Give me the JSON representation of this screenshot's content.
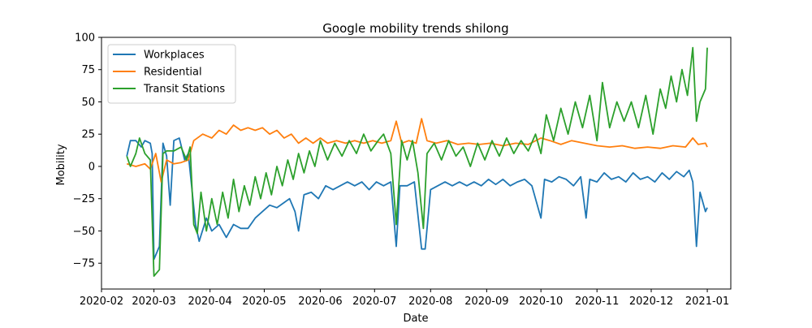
{
  "chart_data": {
    "type": "line",
    "title": "Google mobility trends shilong",
    "xlabel": "Date",
    "ylabel": "Mobility",
    "xlim": [
      "2020-02-01",
      "2021-01-14"
    ],
    "ylim": [
      -95,
      100
    ],
    "x_ticks": [
      "2020-02-01",
      "2020-03-01",
      "2020-04-01",
      "2020-05-01",
      "2020-06-01",
      "2020-07-01",
      "2020-08-01",
      "2020-09-01",
      "2020-10-01",
      "2020-11-01",
      "2020-12-01",
      "2021-01-01"
    ],
    "x_tick_labels": [
      "2020-02",
      "2020-03",
      "2020-04",
      "2020-05",
      "2020-06",
      "2020-07",
      "2020-08",
      "2020-09",
      "2020-10",
      "2020-11",
      "2020-12",
      "2021-01"
    ],
    "y_ticks": [
      -75,
      -50,
      -25,
      0,
      25,
      50,
      75,
      100
    ],
    "y_tick_labels": [
      "−75",
      "−50",
      "−25",
      "0",
      "25",
      "50",
      "75",
      "100"
    ],
    "grid": false,
    "legend_position": "upper-left",
    "series": [
      {
        "name": "Workplaces",
        "color": "#1f77b4",
        "points": [
          [
            "2020-02-15",
            8
          ],
          [
            "2020-02-17",
            20
          ],
          [
            "2020-02-20",
            20
          ],
          [
            "2020-02-23",
            15
          ],
          [
            "2020-02-25",
            20
          ],
          [
            "2020-02-28",
            18
          ],
          [
            "2020-02-29",
            10
          ],
          [
            "2020-03-01",
            -72
          ],
          [
            "2020-03-04",
            -62
          ],
          [
            "2020-03-06",
            18
          ],
          [
            "2020-03-08",
            8
          ],
          [
            "2020-03-10",
            -30
          ],
          [
            "2020-03-12",
            20
          ],
          [
            "2020-03-15",
            22
          ],
          [
            "2020-03-18",
            5
          ],
          [
            "2020-03-20",
            10
          ],
          [
            "2020-03-24",
            -45
          ],
          [
            "2020-03-26",
            -58
          ],
          [
            "2020-03-30",
            -40
          ],
          [
            "2020-04-02",
            -50
          ],
          [
            "2020-04-06",
            -45
          ],
          [
            "2020-04-10",
            -55
          ],
          [
            "2020-04-14",
            -45
          ],
          [
            "2020-04-18",
            -48
          ],
          [
            "2020-04-22",
            -48
          ],
          [
            "2020-04-26",
            -40
          ],
          [
            "2020-04-30",
            -35
          ],
          [
            "2020-05-04",
            -30
          ],
          [
            "2020-05-08",
            -32
          ],
          [
            "2020-05-12",
            -28
          ],
          [
            "2020-05-15",
            -25
          ],
          [
            "2020-05-18",
            -35
          ],
          [
            "2020-05-20",
            -50
          ],
          [
            "2020-05-23",
            -22
          ],
          [
            "2020-05-27",
            -20
          ],
          [
            "2020-05-31",
            -25
          ],
          [
            "2020-06-04",
            -15
          ],
          [
            "2020-06-08",
            -18
          ],
          [
            "2020-06-12",
            -15
          ],
          [
            "2020-06-16",
            -12
          ],
          [
            "2020-06-20",
            -15
          ],
          [
            "2020-06-24",
            -12
          ],
          [
            "2020-06-28",
            -18
          ],
          [
            "2020-07-02",
            -12
          ],
          [
            "2020-07-06",
            -15
          ],
          [
            "2020-07-10",
            -12
          ],
          [
            "2020-07-13",
            -62
          ],
          [
            "2020-07-15",
            -15
          ],
          [
            "2020-07-19",
            -15
          ],
          [
            "2020-07-23",
            -12
          ],
          [
            "2020-07-27",
            -64
          ],
          [
            "2020-07-29",
            -64
          ],
          [
            "2020-08-01",
            -18
          ],
          [
            "2020-08-05",
            -15
          ],
          [
            "2020-08-09",
            -12
          ],
          [
            "2020-08-13",
            -15
          ],
          [
            "2020-08-17",
            -12
          ],
          [
            "2020-08-21",
            -15
          ],
          [
            "2020-08-25",
            -12
          ],
          [
            "2020-08-29",
            -15
          ],
          [
            "2020-09-02",
            -10
          ],
          [
            "2020-09-06",
            -14
          ],
          [
            "2020-09-10",
            -10
          ],
          [
            "2020-09-14",
            -15
          ],
          [
            "2020-09-18",
            -12
          ],
          [
            "2020-09-22",
            -10
          ],
          [
            "2020-09-26",
            -15
          ],
          [
            "2020-10-01",
            -40
          ],
          [
            "2020-10-03",
            -10
          ],
          [
            "2020-10-07",
            -12
          ],
          [
            "2020-10-11",
            -8
          ],
          [
            "2020-10-15",
            -10
          ],
          [
            "2020-10-19",
            -15
          ],
          [
            "2020-10-23",
            -8
          ],
          [
            "2020-10-26",
            -40
          ],
          [
            "2020-10-28",
            -10
          ],
          [
            "2020-11-01",
            -12
          ],
          [
            "2020-11-05",
            -5
          ],
          [
            "2020-11-09",
            -10
          ],
          [
            "2020-11-13",
            -8
          ],
          [
            "2020-11-17",
            -12
          ],
          [
            "2020-11-21",
            -5
          ],
          [
            "2020-11-25",
            -10
          ],
          [
            "2020-11-29",
            -8
          ],
          [
            "2020-12-03",
            -12
          ],
          [
            "2020-12-07",
            -5
          ],
          [
            "2020-12-11",
            -10
          ],
          [
            "2020-12-15",
            -4
          ],
          [
            "2020-12-19",
            -8
          ],
          [
            "2020-12-22",
            -3
          ],
          [
            "2020-12-24",
            -12
          ],
          [
            "2020-12-26",
            -62
          ],
          [
            "2020-12-28",
            -20
          ],
          [
            "2020-12-31",
            -35
          ],
          [
            "2021-01-01",
            -32
          ]
        ]
      },
      {
        "name": "Residential",
        "color": "#ff7f0e",
        "points": [
          [
            "2020-02-15",
            2
          ],
          [
            "2020-02-20",
            0
          ],
          [
            "2020-02-25",
            2
          ],
          [
            "2020-02-28",
            -2
          ],
          [
            "2020-03-02",
            10
          ],
          [
            "2020-03-05",
            -12
          ],
          [
            "2020-03-08",
            5
          ],
          [
            "2020-03-12",
            2
          ],
          [
            "2020-03-16",
            3
          ],
          [
            "2020-03-20",
            5
          ],
          [
            "2020-03-23",
            20
          ],
          [
            "2020-03-28",
            25
          ],
          [
            "2020-04-02",
            22
          ],
          [
            "2020-04-06",
            28
          ],
          [
            "2020-04-10",
            25
          ],
          [
            "2020-04-14",
            32
          ],
          [
            "2020-04-18",
            28
          ],
          [
            "2020-04-22",
            30
          ],
          [
            "2020-04-26",
            28
          ],
          [
            "2020-04-30",
            30
          ],
          [
            "2020-05-04",
            25
          ],
          [
            "2020-05-08",
            28
          ],
          [
            "2020-05-12",
            22
          ],
          [
            "2020-05-16",
            25
          ],
          [
            "2020-05-20",
            18
          ],
          [
            "2020-05-24",
            22
          ],
          [
            "2020-05-28",
            18
          ],
          [
            "2020-06-01",
            22
          ],
          [
            "2020-06-05",
            18
          ],
          [
            "2020-06-10",
            20
          ],
          [
            "2020-06-15",
            18
          ],
          [
            "2020-06-20",
            20
          ],
          [
            "2020-06-25",
            18
          ],
          [
            "2020-06-30",
            20
          ],
          [
            "2020-07-05",
            18
          ],
          [
            "2020-07-10",
            20
          ],
          [
            "2020-07-13",
            35
          ],
          [
            "2020-07-16",
            18
          ],
          [
            "2020-07-20",
            20
          ],
          [
            "2020-07-24",
            18
          ],
          [
            "2020-07-27",
            37
          ],
          [
            "2020-07-30",
            20
          ],
          [
            "2020-08-04",
            18
          ],
          [
            "2020-08-10",
            20
          ],
          [
            "2020-08-16",
            17
          ],
          [
            "2020-08-22",
            18
          ],
          [
            "2020-08-28",
            17
          ],
          [
            "2020-09-03",
            18
          ],
          [
            "2020-09-10",
            16
          ],
          [
            "2020-09-17",
            18
          ],
          [
            "2020-09-24",
            17
          ],
          [
            "2020-10-01",
            22
          ],
          [
            "2020-10-06",
            20
          ],
          [
            "2020-10-12",
            17
          ],
          [
            "2020-10-18",
            20
          ],
          [
            "2020-10-25",
            18
          ],
          [
            "2020-11-01",
            16
          ],
          [
            "2020-11-08",
            15
          ],
          [
            "2020-11-15",
            16
          ],
          [
            "2020-11-22",
            14
          ],
          [
            "2020-11-29",
            15
          ],
          [
            "2020-12-06",
            14
          ],
          [
            "2020-12-13",
            16
          ],
          [
            "2020-12-20",
            15
          ],
          [
            "2020-12-24",
            22
          ],
          [
            "2020-12-27",
            17
          ],
          [
            "2020-12-31",
            18
          ],
          [
            "2021-01-01",
            15
          ]
        ]
      },
      {
        "name": "Transit Stations",
        "color": "#2ca02c",
        "points": [
          [
            "2020-02-15",
            8
          ],
          [
            "2020-02-17",
            0
          ],
          [
            "2020-02-20",
            10
          ],
          [
            "2020-02-22",
            22
          ],
          [
            "2020-02-25",
            10
          ],
          [
            "2020-02-28",
            5
          ],
          [
            "2020-03-01",
            -85
          ],
          [
            "2020-03-04",
            -80
          ],
          [
            "2020-03-06",
            10
          ],
          [
            "2020-03-08",
            12
          ],
          [
            "2020-03-12",
            12
          ],
          [
            "2020-03-16",
            15
          ],
          [
            "2020-03-19",
            5
          ],
          [
            "2020-03-21",
            15
          ],
          [
            "2020-03-23",
            -45
          ],
          [
            "2020-03-25",
            -52
          ],
          [
            "2020-03-27",
            -20
          ],
          [
            "2020-03-30",
            -50
          ],
          [
            "2020-04-02",
            -25
          ],
          [
            "2020-04-05",
            -45
          ],
          [
            "2020-04-08",
            -20
          ],
          [
            "2020-04-11",
            -40
          ],
          [
            "2020-04-14",
            -10
          ],
          [
            "2020-04-17",
            -35
          ],
          [
            "2020-04-20",
            -15
          ],
          [
            "2020-04-23",
            -30
          ],
          [
            "2020-04-26",
            -8
          ],
          [
            "2020-04-29",
            -25
          ],
          [
            "2020-05-02",
            -5
          ],
          [
            "2020-05-05",
            -22
          ],
          [
            "2020-05-08",
            0
          ],
          [
            "2020-05-11",
            -15
          ],
          [
            "2020-05-14",
            5
          ],
          [
            "2020-05-17",
            -10
          ],
          [
            "2020-05-20",
            10
          ],
          [
            "2020-05-23",
            -5
          ],
          [
            "2020-05-26",
            12
          ],
          [
            "2020-05-29",
            0
          ],
          [
            "2020-06-01",
            20
          ],
          [
            "2020-06-05",
            5
          ],
          [
            "2020-06-09",
            18
          ],
          [
            "2020-06-13",
            8
          ],
          [
            "2020-06-17",
            20
          ],
          [
            "2020-06-21",
            10
          ],
          [
            "2020-06-25",
            25
          ],
          [
            "2020-06-29",
            12
          ],
          [
            "2020-07-03",
            20
          ],
          [
            "2020-07-06",
            25
          ],
          [
            "2020-07-10",
            10
          ],
          [
            "2020-07-13",
            -45
          ],
          [
            "2020-07-16",
            20
          ],
          [
            "2020-07-19",
            5
          ],
          [
            "2020-07-22",
            20
          ],
          [
            "2020-07-25",
            -5
          ],
          [
            "2020-07-28",
            -48
          ],
          [
            "2020-07-30",
            10
          ],
          [
            "2020-08-03",
            18
          ],
          [
            "2020-08-07",
            5
          ],
          [
            "2020-08-11",
            20
          ],
          [
            "2020-08-15",
            8
          ],
          [
            "2020-08-19",
            15
          ],
          [
            "2020-08-23",
            0
          ],
          [
            "2020-08-27",
            18
          ],
          [
            "2020-08-31",
            5
          ],
          [
            "2020-09-04",
            20
          ],
          [
            "2020-09-08",
            8
          ],
          [
            "2020-09-12",
            22
          ],
          [
            "2020-09-16",
            10
          ],
          [
            "2020-09-20",
            20
          ],
          [
            "2020-09-24",
            12
          ],
          [
            "2020-09-28",
            25
          ],
          [
            "2020-10-01",
            10
          ],
          [
            "2020-10-04",
            40
          ],
          [
            "2020-10-08",
            20
          ],
          [
            "2020-10-12",
            45
          ],
          [
            "2020-10-16",
            25
          ],
          [
            "2020-10-20",
            50
          ],
          [
            "2020-10-24",
            30
          ],
          [
            "2020-10-28",
            55
          ],
          [
            "2020-11-01",
            20
          ],
          [
            "2020-11-04",
            65
          ],
          [
            "2020-11-08",
            30
          ],
          [
            "2020-11-12",
            50
          ],
          [
            "2020-11-16",
            35
          ],
          [
            "2020-11-20",
            50
          ],
          [
            "2020-11-24",
            30
          ],
          [
            "2020-11-28",
            55
          ],
          [
            "2020-12-02",
            25
          ],
          [
            "2020-12-06",
            60
          ],
          [
            "2020-12-09",
            45
          ],
          [
            "2020-12-12",
            70
          ],
          [
            "2020-12-15",
            50
          ],
          [
            "2020-12-18",
            75
          ],
          [
            "2020-12-21",
            55
          ],
          [
            "2020-12-24",
            92
          ],
          [
            "2020-12-26",
            35
          ],
          [
            "2020-12-28",
            50
          ],
          [
            "2020-12-31",
            60
          ],
          [
            "2021-01-01",
            92
          ]
        ]
      }
    ]
  }
}
